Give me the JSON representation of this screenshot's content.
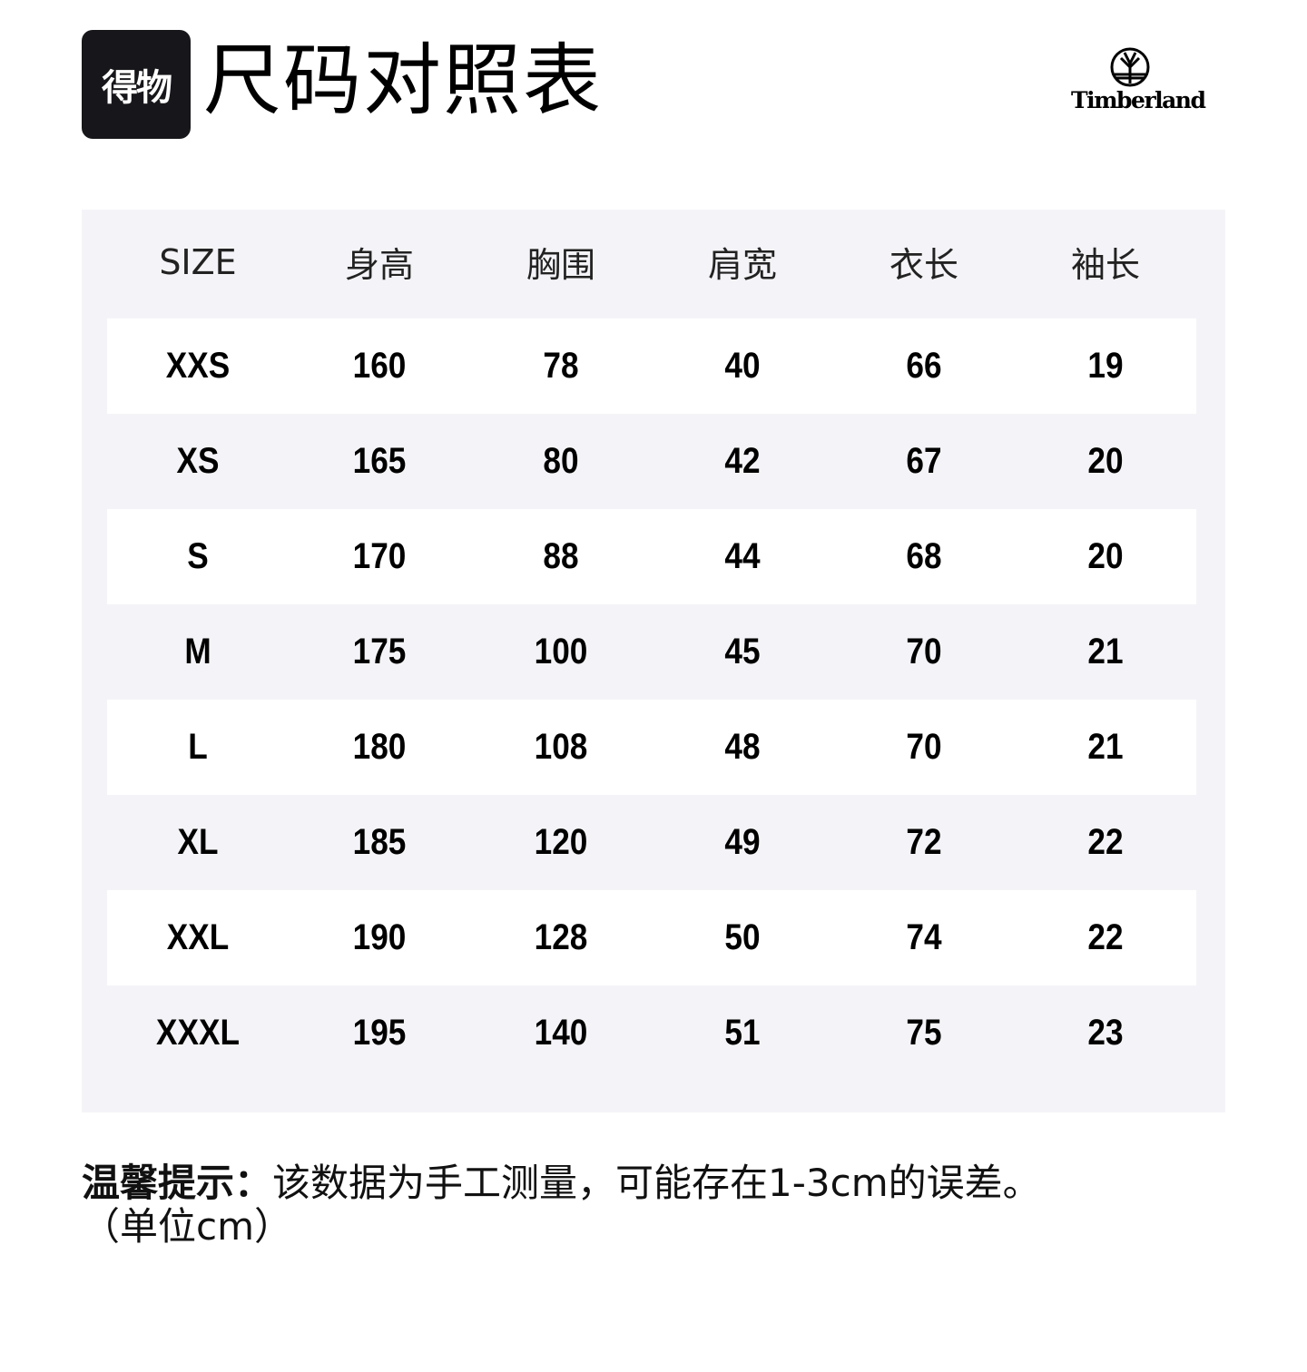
{
  "badge": {
    "text": "得物"
  },
  "title": "尺码对照表",
  "brand": {
    "name": "Timberland"
  },
  "table": {
    "headers": [
      "SIZE",
      "身高",
      "胸围",
      "肩宽",
      "衣长",
      "袖长"
    ],
    "rows": [
      [
        "XXS",
        "160",
        "78",
        "40",
        "66",
        "19"
      ],
      [
        "XS",
        "165",
        "80",
        "42",
        "67",
        "20"
      ],
      [
        "S",
        "170",
        "88",
        "44",
        "68",
        "20"
      ],
      [
        "M",
        "175",
        "100",
        "45",
        "70",
        "21"
      ],
      [
        "L",
        "180",
        "108",
        "48",
        "70",
        "21"
      ],
      [
        "XL",
        "185",
        "120",
        "49",
        "72",
        "22"
      ],
      [
        "XXL",
        "190",
        "128",
        "50",
        "74",
        "22"
      ],
      [
        "XXXL",
        "195",
        "140",
        "51",
        "75",
        "23"
      ]
    ]
  },
  "note": {
    "label": "温馨提示：",
    "text": "该数据为手工测量，可能存在1-3cm的误差。",
    "unit": "（单位cm）"
  }
}
